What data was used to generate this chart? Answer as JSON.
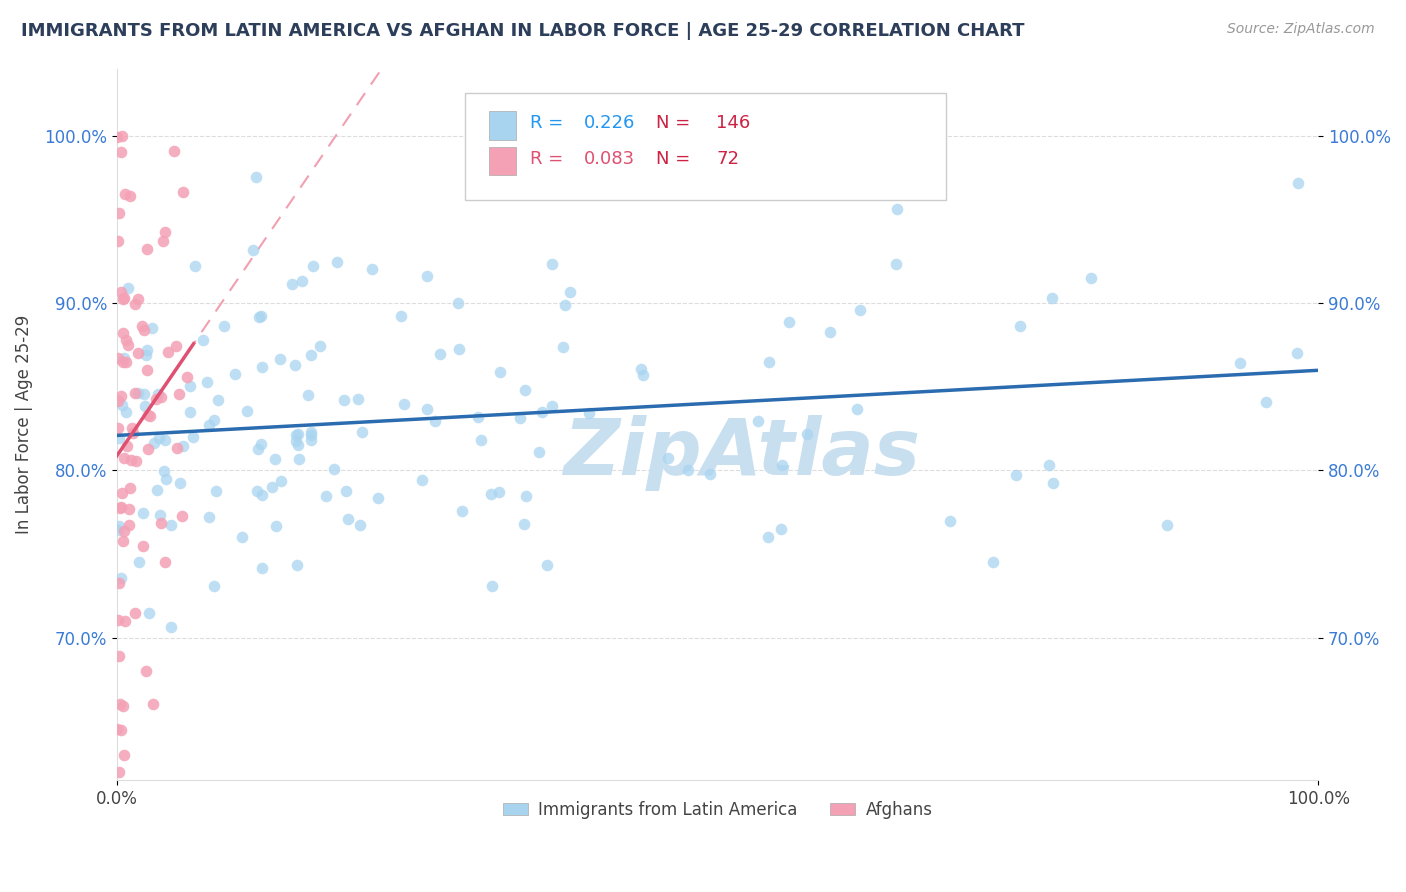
{
  "title": "IMMIGRANTS FROM LATIN AMERICA VS AFGHAN IN LABOR FORCE | AGE 25-29 CORRELATION CHART",
  "source_text": "Source: ZipAtlas.com",
  "ylabel": "In Labor Force | Age 25-29",
  "xlim": [
    0.0,
    1.0
  ],
  "ylim": [
    0.615,
    1.04
  ],
  "ytick_values": [
    0.7,
    0.8,
    0.9,
    1.0
  ],
  "ytick_labels": [
    "70.0%",
    "80.0%",
    "90.0%",
    "100.0%"
  ],
  "xtick_values": [
    0.0,
    1.0
  ],
  "xtick_labels": [
    "0.0%",
    "100.0%"
  ],
  "R_latin": 0.226,
  "N_latin": 146,
  "R_afghan": 0.083,
  "N_afghan": 72,
  "blue_scatter_color": "#a8d4f0",
  "pink_scatter_color": "#f4a0b5",
  "blue_line_color": "#2b6cb0",
  "pink_solid_color": "#e05070",
  "pink_dash_color": "#f0a0b0",
  "title_color": "#2c3e5a",
  "watermark_text": "ZipAtlas",
  "watermark_color": "#c8dff0",
  "source_color": "#999999",
  "legend1_label_r": "R = ",
  "legend1_r_val": "0.226",
  "legend1_label_n": "   N = ",
  "legend1_n_val": "146",
  "legend2_label_r": "R = ",
  "legend2_r_val": "0.083",
  "legend2_label_n": "   N = ",
  "legend2_n_val": "72",
  "legend1_text_color": "#2196F3",
  "legend2_text_color": "#e05070",
  "r_val_color": "#2196F3",
  "n_val_color": "#e05070",
  "bottom_legend1": "Immigrants from Latin America",
  "bottom_legend2": "Afghans",
  "grid_color": "#dddddd",
  "tick_color": "#3a7bd5",
  "axis_label_color": "#444444"
}
